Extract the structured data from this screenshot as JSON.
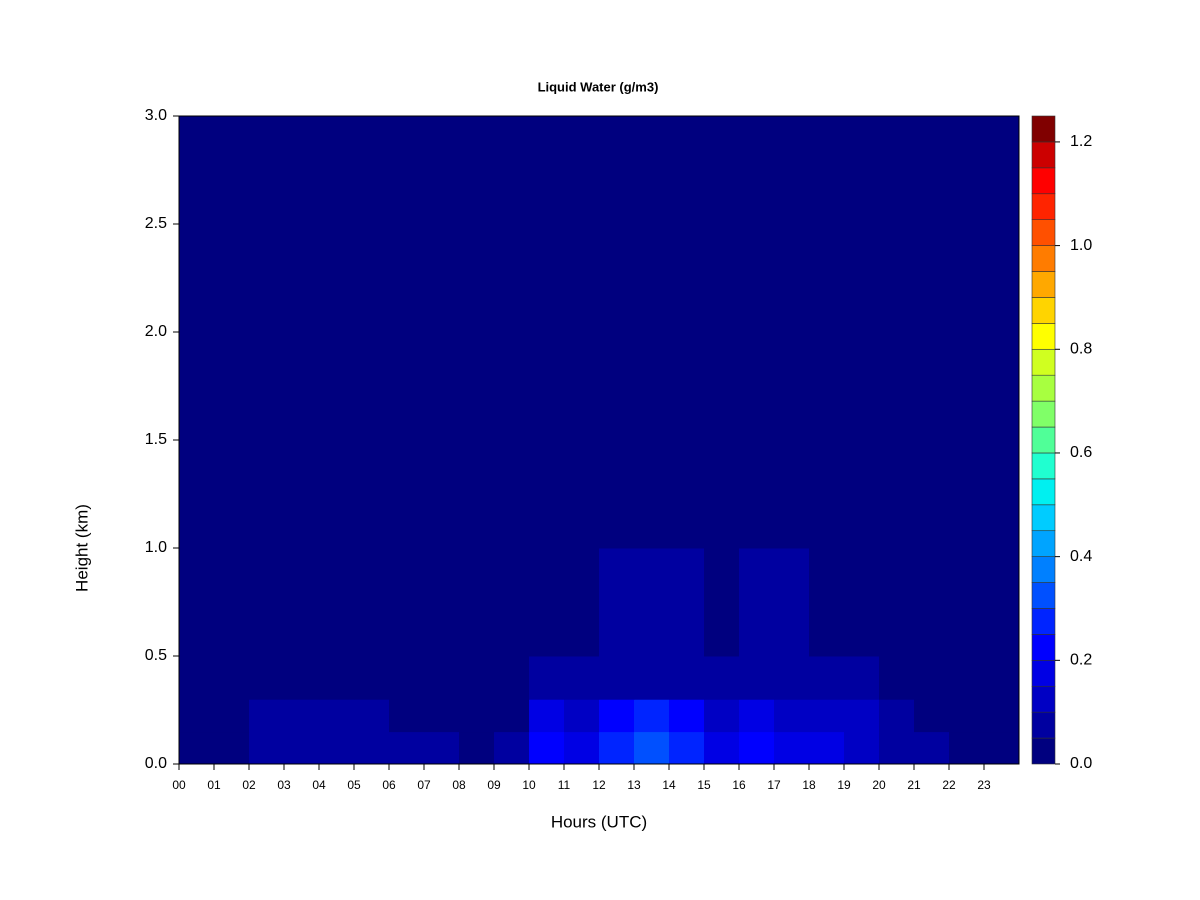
{
  "chart_data": {
    "type": "heatmap",
    "title": "Liquid Water (g/m3)",
    "x_label": "Hours (UTC)",
    "y_label": "Height (km)",
    "categories": [
      "00",
      "01",
      "02",
      "03",
      "04",
      "05",
      "06",
      "07",
      "08",
      "09",
      "10",
      "11",
      "12",
      "13",
      "14",
      "15",
      "16",
      "17",
      "18",
      "19",
      "20",
      "21",
      "22",
      "23"
    ],
    "y_edges": [
      0,
      0.15,
      0.3,
      0.5,
      1.0,
      3.0
    ],
    "ylim": [
      0,
      3
    ],
    "yticks": [
      {
        "value": 0,
        "label": "0.0"
      },
      0.5,
      {
        "value": 1,
        "label": "1.0"
      },
      1.5,
      {
        "value": 2,
        "label": "2.0"
      },
      2.5,
      {
        "value": 3,
        "label": "3.0"
      }
    ],
    "values": [
      [
        0,
        0,
        0.08,
        0.07,
        0.08,
        0.08,
        0.06,
        0.05,
        0.02,
        0.05,
        0.2,
        0.15,
        0.25,
        0.3,
        0.25,
        0.15,
        0.2,
        0.15,
        0.15,
        0.12,
        0.08,
        0.05,
        0,
        0
      ],
      [
        0,
        0,
        0.05,
        0.05,
        0.05,
        0.05,
        0.04,
        0.03,
        0.01,
        0.04,
        0.15,
        0.12,
        0.2,
        0.25,
        0.2,
        0.12,
        0.15,
        0.12,
        0.12,
        0.1,
        0.06,
        0.04,
        0,
        0
      ],
      [
        0,
        0,
        0.02,
        0.02,
        0.02,
        0.03,
        0.02,
        0.02,
        0,
        0.02,
        0.06,
        0.06,
        0.08,
        0.08,
        0.08,
        0.06,
        0.07,
        0.06,
        0.06,
        0.05,
        0.02,
        0.01,
        0,
        0
      ],
      [
        0,
        0,
        0,
        0,
        0.01,
        0.02,
        0,
        0.01,
        0,
        0,
        0.03,
        0.03,
        0.06,
        0.07,
        0.06,
        0.04,
        0.05,
        0.05,
        0.04,
        0.04,
        0.01,
        0,
        0,
        0
      ],
      [
        0,
        0,
        0,
        0,
        0,
        0,
        0,
        0,
        0,
        0,
        0,
        0,
        0,
        0,
        0,
        0,
        0,
        0,
        0.01,
        0.01,
        0,
        0,
        0,
        0
      ]
    ],
    "colorbar": {
      "levels": [
        0,
        0.05,
        0.1,
        0.15,
        0.2,
        0.25,
        0.3,
        0.35,
        0.4,
        0.45,
        0.5,
        0.55,
        0.6,
        0.65,
        0.7,
        0.75,
        0.8,
        0.85,
        0.9,
        0.95,
        1.0,
        1.05,
        1.1,
        1.15,
        1.2,
        1.25
      ],
      "colors": [
        "#00007f",
        "#0000a0",
        "#0000c4",
        "#0000e4",
        "#0000ff",
        "#0024ff",
        "#0050ff",
        "#0080ff",
        "#00a4ff",
        "#00ccff",
        "#00f0f0",
        "#20ffd0",
        "#50ff98",
        "#80ff68",
        "#a8ff40",
        "#d0ff20",
        "#ffff00",
        "#ffd400",
        "#ffa800",
        "#ff7c00",
        "#ff5000",
        "#ff2400",
        "#ff0000",
        "#cc0000",
        "#800000"
      ],
      "lim": [
        0,
        1.25
      ],
      "ticks": [
        {
          "value": 0,
          "label": "0.0"
        },
        0.2,
        0.4,
        0.6,
        0.8,
        {
          "value": 1,
          "label": "1.0"
        },
        1.2
      ]
    }
  }
}
